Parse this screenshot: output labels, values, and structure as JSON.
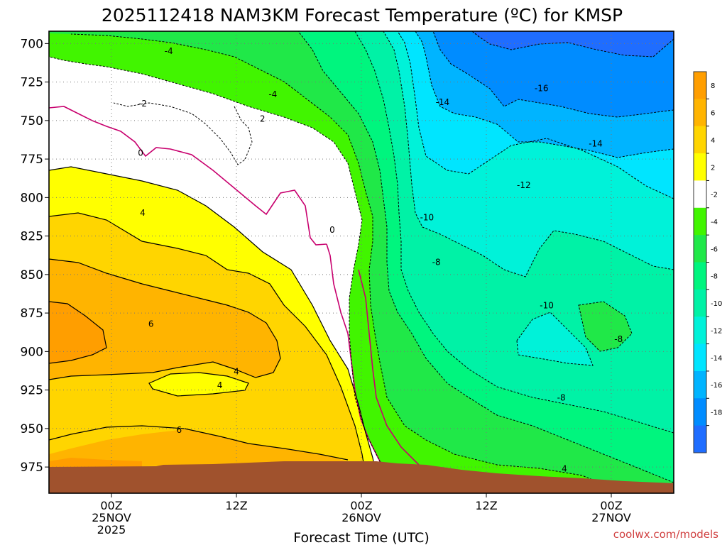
{
  "chart_data": {
    "type": "contour",
    "title": "2025112418 NAM3KM Forecast Temperature (ºC) for KMSP",
    "xlabel": "Forecast Time (UTC)",
    "ylabel": "",
    "credit": "coolwx.com/models",
    "x_ticks": [
      {
        "hour": 6,
        "line1": "00Z",
        "line2": "25NOV",
        "line3": "2025"
      },
      {
        "hour": 18,
        "line1": "12Z",
        "line2": "",
        "line3": ""
      },
      {
        "hour": 30,
        "line1": "00Z",
        "line2": "26NOV",
        "line3": ""
      },
      {
        "hour": 42,
        "line1": "12Z",
        "line2": "",
        "line3": ""
      },
      {
        "hour": 54,
        "line1": "00Z",
        "line2": "27NOV",
        "line3": ""
      }
    ],
    "x_range_hours": [
      0,
      60
    ],
    "y_ticks": [
      700,
      725,
      750,
      775,
      800,
      825,
      850,
      875,
      900,
      925,
      950,
      975
    ],
    "y_tick_labels": [
      "700",
      "725",
      "750",
      "775",
      "800",
      "825",
      "850",
      "875",
      "900",
      "925",
      "950",
      "975"
    ],
    "y_range_hpa": [
      692,
      992
    ],
    "colorbar": {
      "labels": [
        "8",
        "6",
        "4",
        "2",
        "-2",
        "-4",
        "-6",
        "-8",
        "-10",
        "-12",
        "-14",
        "-16",
        "-18"
      ],
      "bands": [
        {
          "min": 8,
          "max": 10,
          "color": "#ff9e00"
        },
        {
          "min": 6,
          "max": 8,
          "color": "#ffb400"
        },
        {
          "min": 4,
          "max": 6,
          "color": "#ffd500"
        },
        {
          "min": 2,
          "max": 4,
          "color": "#ffff00"
        },
        {
          "min": -2,
          "max": 2,
          "color": "#ffffff"
        },
        {
          "min": -4,
          "max": -2,
          "color": "#41f500"
        },
        {
          "min": -6,
          "max": -4,
          "color": "#20e848"
        },
        {
          "min": -8,
          "max": -6,
          "color": "#00f57e"
        },
        {
          "min": -10,
          "max": -8,
          "color": "#00f2a6"
        },
        {
          "min": -12,
          "max": -10,
          "color": "#00f2d9"
        },
        {
          "min": -14,
          "max": -12,
          "color": "#00e5ff"
        },
        {
          "min": -16,
          "max": -14,
          "color": "#00b4ff"
        },
        {
          "min": -18,
          "max": -16,
          "color": "#008cff"
        },
        {
          "min": -20,
          "max": -18,
          "color": "#1f6dff"
        }
      ]
    },
    "contour_labels": [
      {
        "text": "-4",
        "hour": 11.5,
        "hpa": 705
      },
      {
        "text": "-2",
        "hour": 9.0,
        "hpa": 739
      },
      {
        "text": "-4",
        "hour": 21.5,
        "hpa": 733
      },
      {
        "text": "2",
        "hour": 20.5,
        "hpa": 749
      },
      {
        "text": "0",
        "hour": 8.8,
        "hpa": 771
      },
      {
        "text": "-14",
        "hour": 37.8,
        "hpa": 738
      },
      {
        "text": "-16",
        "hour": 47.3,
        "hpa": 729
      },
      {
        "text": "-14",
        "hour": 52.5,
        "hpa": 765
      },
      {
        "text": "-12",
        "hour": 45.6,
        "hpa": 792
      },
      {
        "text": "-10",
        "hour": 36.3,
        "hpa": 813
      },
      {
        "text": "0",
        "hour": 27.2,
        "hpa": 821
      },
      {
        "text": "4",
        "hour": 9.0,
        "hpa": 810
      },
      {
        "text": "-8",
        "hour": 37.2,
        "hpa": 842
      },
      {
        "text": "-10",
        "hour": 47.8,
        "hpa": 870
      },
      {
        "text": "-8",
        "hour": 54.7,
        "hpa": 892
      },
      {
        "text": "6",
        "hour": 9.8,
        "hpa": 882
      },
      {
        "text": "4",
        "hour": 18.0,
        "hpa": 913
      },
      {
        "text": "4",
        "hour": 16.4,
        "hpa": 922
      },
      {
        "text": "-8",
        "hour": 49.2,
        "hpa": 930
      },
      {
        "text": "6",
        "hour": 12.5,
        "hpa": 951
      },
      {
        "text": "4",
        "hour": 49.5,
        "hpa": 976
      }
    ]
  }
}
